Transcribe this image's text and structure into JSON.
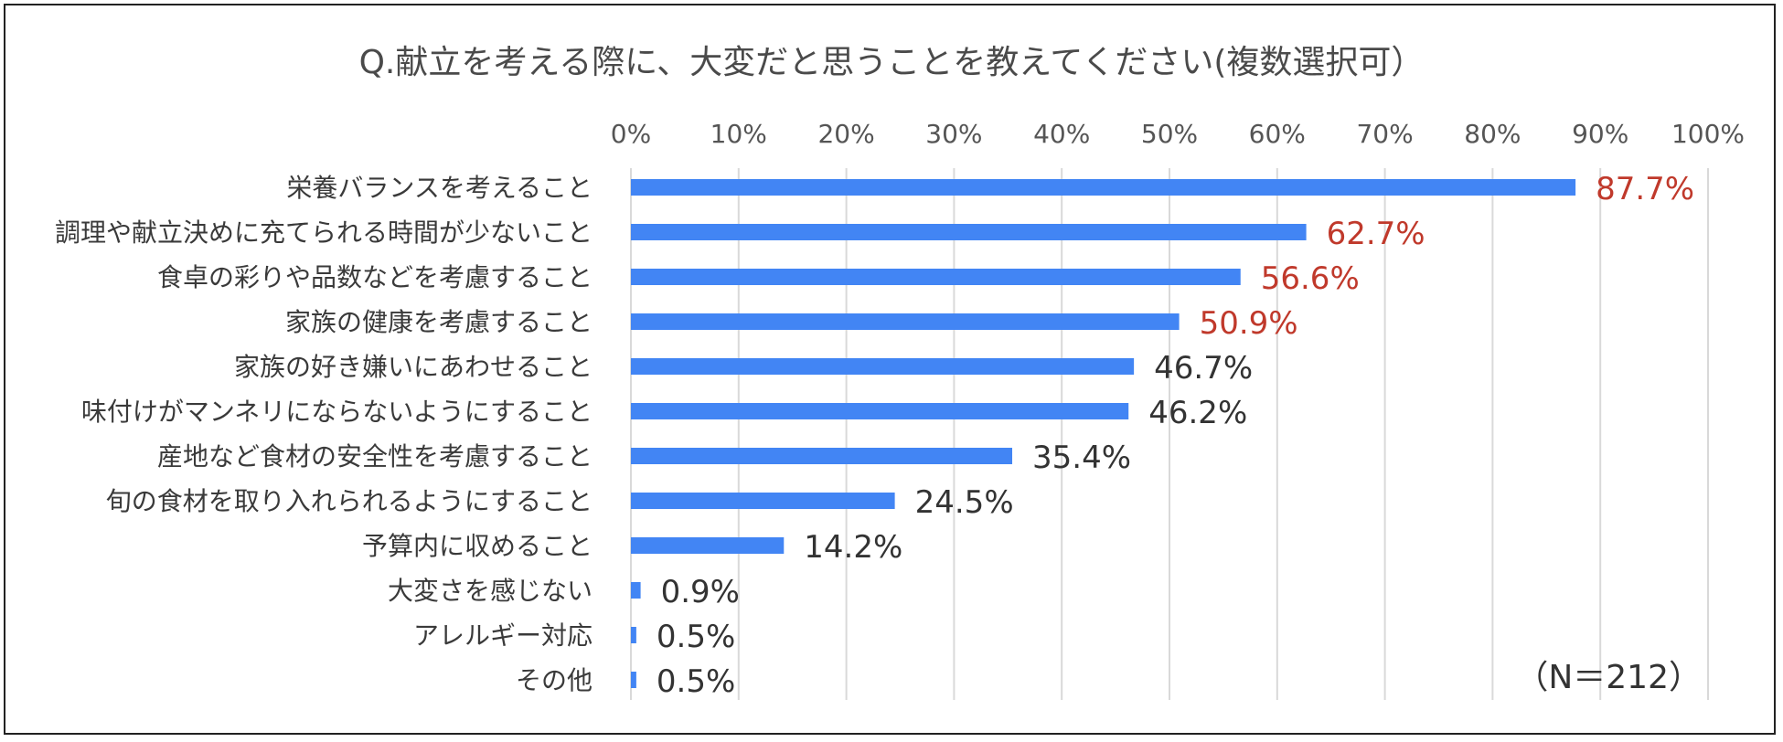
{
  "chart_data": {
    "type": "bar",
    "orientation": "horizontal",
    "title": "Q.献立を考える際に、大変だと思うことを教えてください(複数選択可）",
    "categories": [
      "栄養バランスを考えること",
      "調理や献立決めに充てられる時間が少ないこと",
      "食卓の彩りや品数などを考慮すること",
      "家族の健康を考慮すること",
      "家族の好き嫌いにあわせること",
      "味付けがマンネリにならないようにすること",
      "産地など食材の安全性を考慮すること",
      "旬の食材を取り入れられるようにすること",
      "予算内に収めること",
      "大変さを感じない",
      "アレルギー対応",
      "その他"
    ],
    "values": [
      87.7,
      62.7,
      56.6,
      50.9,
      46.7,
      46.2,
      35.4,
      24.5,
      14.2,
      0.9,
      0.5,
      0.5
    ],
    "value_labels": [
      "87.7%",
      "62.7%",
      "56.6%",
      "50.9%",
      "46.7%",
      "46.2%",
      "35.4%",
      "24.5%",
      "14.2%",
      "0.9%",
      "0.5%",
      "0.5%"
    ],
    "highlight_top": 4,
    "xlim": [
      0,
      100
    ],
    "xticks": [
      0,
      10,
      20,
      30,
      40,
      50,
      60,
      70,
      80,
      90,
      100
    ],
    "xtick_labels": [
      "0%",
      "10%",
      "20%",
      "30%",
      "40%",
      "50%",
      "60%",
      "70%",
      "80%",
      "90%",
      "100%"
    ],
    "x_axis_position": "top",
    "grid": true,
    "xlabel": "",
    "ylabel": "",
    "note": "（N＝212）",
    "colors": {
      "bar": "#4285f4",
      "highlight_label": "#c0392b",
      "label": "#333333",
      "grid": "#d9d9d9"
    }
  }
}
